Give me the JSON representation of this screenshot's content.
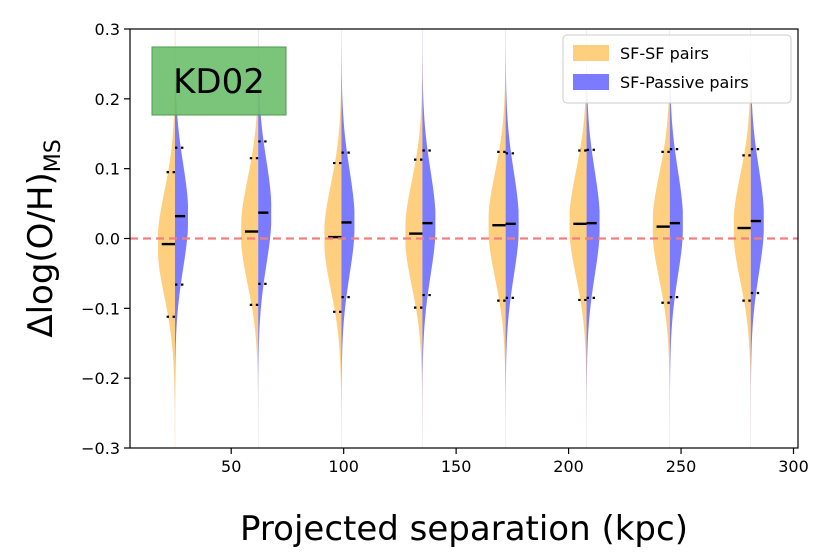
{
  "chart_data": {
    "type": "violin",
    "annotation": "KD02",
    "xlabel": "Projected separation (kpc)",
    "ylabel_main": "Δlog(O/H)",
    "ylabel_sub": "MS",
    "xlim": [
      5,
      302
    ],
    "ylim": [
      -0.3,
      0.3
    ],
    "xticks": [
      50,
      100,
      150,
      200,
      250,
      300
    ],
    "yticks": [
      -0.3,
      -0.2,
      -0.1,
      0.0,
      0.1,
      0.2,
      0.3
    ],
    "xtick_labels": [
      "50",
      "100",
      "150",
      "200",
      "250",
      "300"
    ],
    "ytick_labels": [
      "−0.3",
      "−0.2",
      "−0.1",
      "0.0",
      "0.1",
      "0.2",
      "0.3"
    ],
    "reference_line_y": 0.0,
    "colors": {
      "sf_sf": "#ffcf80",
      "sf_passive": "#7b7bff",
      "reference": "#f08080",
      "annotation_box": "#6dbf6d"
    },
    "legend": {
      "position": "top-right",
      "entries": [
        "SF-SF pairs",
        "SF-Passive pairs"
      ]
    },
    "x": [
      25,
      62,
      99,
      135,
      172,
      208,
      245,
      281
    ],
    "series": [
      {
        "name": "SF-SF pairs",
        "median": [
          -0.008,
          0.01,
          0.002,
          0.007,
          0.019,
          0.021,
          0.017,
          0.015
        ],
        "q1": [
          -0.112,
          -0.095,
          -0.105,
          -0.099,
          -0.089,
          -0.088,
          -0.092,
          -0.089
        ],
        "q3": [
          0.095,
          0.115,
          0.108,
          0.113,
          0.124,
          0.126,
          0.124,
          0.119
        ],
        "width": [
          17,
          17,
          17,
          17,
          17,
          17,
          17,
          17
        ]
      },
      {
        "name": "SF-Passive pairs",
        "median": [
          0.032,
          0.037,
          0.023,
          0.022,
          0.021,
          0.022,
          0.022,
          0.025
        ],
        "q1": [
          -0.066,
          -0.065,
          -0.084,
          -0.081,
          -0.085,
          -0.085,
          -0.084,
          -0.078
        ],
        "q3": [
          0.13,
          0.139,
          0.123,
          0.126,
          0.122,
          0.127,
          0.128,
          0.128
        ],
        "width": [
          13,
          13,
          13,
          13,
          13,
          13,
          13,
          13
        ]
      }
    ]
  }
}
